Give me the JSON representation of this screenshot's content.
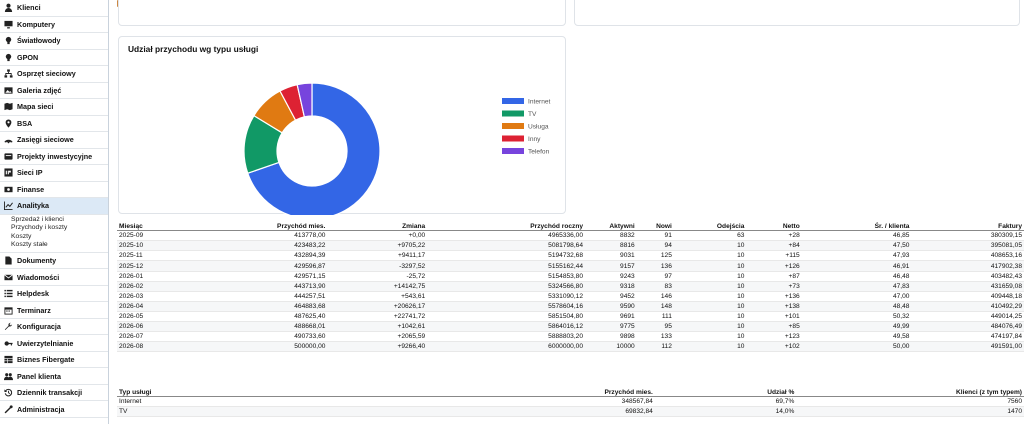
{
  "sidebar": {
    "items": [
      {
        "label": "Klienci",
        "icon": "user-icon"
      },
      {
        "label": "Komputery",
        "icon": "monitor-icon"
      },
      {
        "label": "Światłowody",
        "icon": "bulb-icon"
      },
      {
        "label": "GPON",
        "icon": "bulb-icon"
      },
      {
        "label": "Osprzęt sieciowy",
        "icon": "network-icon"
      },
      {
        "label": "Galeria zdjęć",
        "icon": "image-icon"
      },
      {
        "label": "Mapa sieci",
        "icon": "map-icon"
      },
      {
        "label": "BSA",
        "icon": "pin-icon"
      },
      {
        "label": "Zasięgi sieciowe",
        "icon": "antenna-icon"
      },
      {
        "label": "Projekty inwestycyjne",
        "icon": "folder-icon"
      },
      {
        "label": "Sieci IP",
        "icon": "ip-icon"
      },
      {
        "label": "Finanse",
        "icon": "money-icon"
      },
      {
        "label": "Analityka",
        "icon": "chart-line-icon",
        "active": true
      }
    ],
    "analytics_sub": [
      "Sprzedaż i klienci",
      "Przychody i koszty",
      "Koszty",
      "Koszty stałe"
    ],
    "items_after": [
      {
        "label": "Dokumenty",
        "icon": "document-icon"
      },
      {
        "label": "Wiadomości",
        "icon": "mail-icon"
      },
      {
        "label": "Helpdesk",
        "icon": "list-icon"
      },
      {
        "label": "Terminarz",
        "icon": "calendar-icon"
      },
      {
        "label": "Konfiguracja",
        "icon": "wrench-icon"
      },
      {
        "label": "Uwierzytelnianie",
        "icon": "key-icon"
      },
      {
        "label": "Biznes Fibergate",
        "icon": "table-icon"
      },
      {
        "label": "Panel klienta",
        "icon": "users-icon"
      },
      {
        "label": "Dziennik transakcji",
        "icon": "history-icon"
      },
      {
        "label": "Administracja",
        "icon": "tools-icon"
      }
    ]
  },
  "chart_panel": {
    "title": "Udział przychodu wg typu usługi"
  },
  "chart_data": {
    "type": "pie",
    "title": "Udział przychodu wg typu usługi",
    "categories": [
      "Internet",
      "TV",
      "Usługa",
      "Inny",
      "Telefon"
    ],
    "values": [
      69.7,
      14.0,
      8.5,
      4.3,
      3.5
    ],
    "colors": [
      "#3366e6",
      "#119966",
      "#e07a12",
      "#dd2233",
      "#7744dd"
    ],
    "legend": "right"
  },
  "monthly_table": {
    "headers": [
      "Miesiąc",
      "Przychód mies.",
      "Zmiana",
      "Przychód roczny",
      "Aktywni",
      "Nowi",
      "Odejścia",
      "Netto",
      "Śr. / klienta",
      "Faktury"
    ],
    "rows": [
      [
        "2025-09",
        "413778,00",
        "+0,00",
        "4965336,00",
        "8832",
        "91",
        "63",
        "+28",
        "46,85",
        "380309,15"
      ],
      [
        "2025-10",
        "423483,22",
        "+9705,22",
        "5081798,64",
        "8816",
        "94",
        "10",
        "+84",
        "47,50",
        "395081,05"
      ],
      [
        "2025-11",
        "432894,39",
        "+9411,17",
        "5194732,68",
        "9031",
        "125",
        "10",
        "+115",
        "47,93",
        "408653,16"
      ],
      [
        "2025-12",
        "429596,87",
        "-3297,52",
        "5155162,44",
        "9157",
        "136",
        "10",
        "+126",
        "46,91",
        "417902,38"
      ],
      [
        "2026-01",
        "429571,15",
        "-25,72",
        "5154853,80",
        "9243",
        "97",
        "10",
        "+87",
        "46,48",
        "403482,43"
      ],
      [
        "2026-02",
        "443713,90",
        "+14142,75",
        "5324566,80",
        "9318",
        "83",
        "10",
        "+73",
        "47,83",
        "431659,08"
      ],
      [
        "2026-03",
        "444257,51",
        "+543,61",
        "5331090,12",
        "9452",
        "146",
        "10",
        "+136",
        "47,00",
        "409448,18"
      ],
      [
        "2026-04",
        "464883,68",
        "+20626,17",
        "5578604,16",
        "9590",
        "148",
        "10",
        "+138",
        "48,48",
        "410492,29"
      ],
      [
        "2026-05",
        "487625,40",
        "+22741,72",
        "5851504,80",
        "9691",
        "111",
        "10",
        "+101",
        "50,32",
        "449014,25"
      ],
      [
        "2026-06",
        "488668,01",
        "+1042,61",
        "5864016,12",
        "9775",
        "95",
        "10",
        "+85",
        "49,99",
        "484076,49"
      ],
      [
        "2026-07",
        "490733,60",
        "+2065,59",
        "5888803,20",
        "9898",
        "133",
        "10",
        "+123",
        "49,58",
        "474197,84"
      ],
      [
        "2026-08",
        "500000,00",
        "+9266,40",
        "6000000,00",
        "10000",
        "112",
        "10",
        "+102",
        "50,00",
        "491591,00"
      ]
    ]
  },
  "service_table": {
    "headers": [
      "Typ usługi",
      "Przychód mies.",
      "Udział %",
      "Klienci (z tym typem)"
    ],
    "rows": [
      [
        "Internet",
        "348567,84",
        "69,7%",
        "7560"
      ],
      [
        "TV",
        "69832,84",
        "14,0%",
        "1470"
      ]
    ]
  }
}
